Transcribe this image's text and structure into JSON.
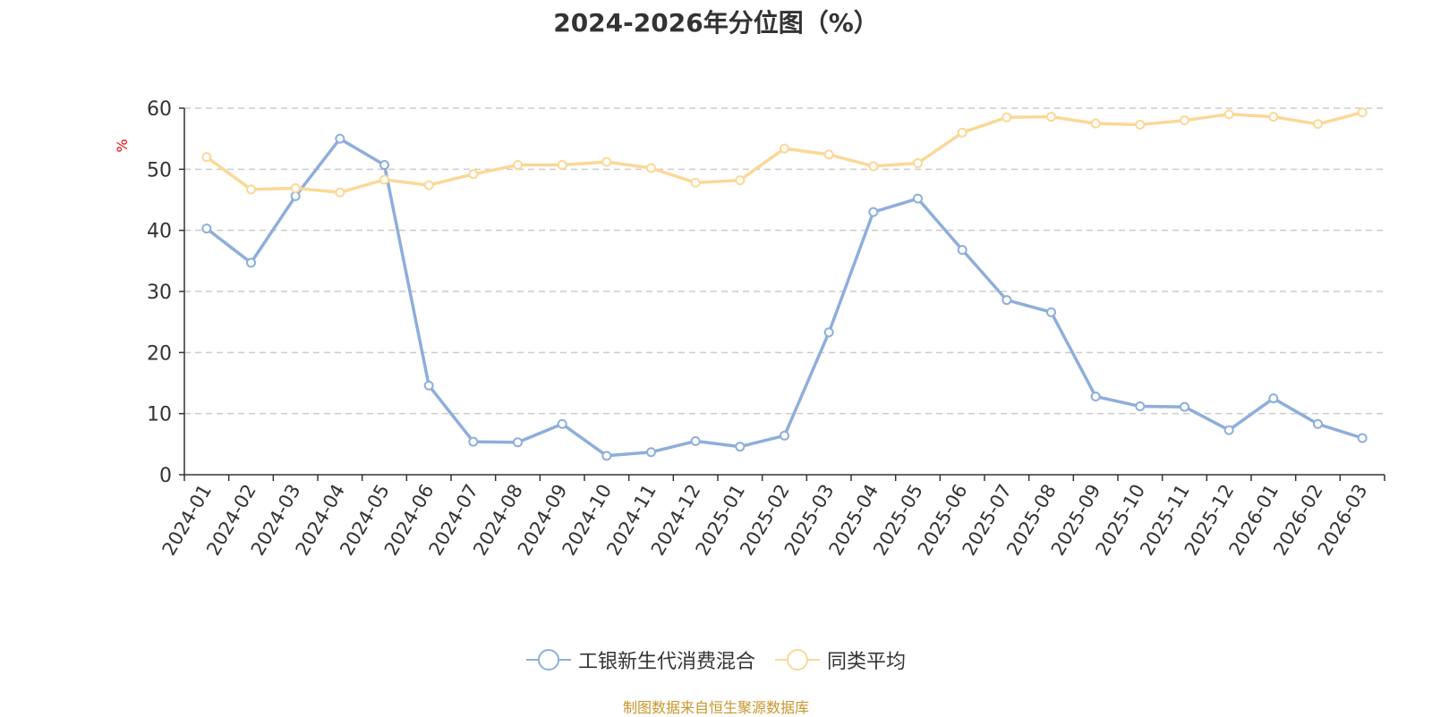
{
  "chart_data": {
    "type": "line",
    "title": "2024-2026年分位图（%）",
    "ylabel": "%",
    "xlabel": "",
    "ylim": [
      0,
      60
    ],
    "yticks": [
      0,
      10,
      20,
      30,
      40,
      50,
      60
    ],
    "grid": true,
    "legend_position": "bottom",
    "categories": [
      "2024-01",
      "2024-02",
      "2024-03",
      "2024-04",
      "2024-05",
      "2024-06",
      "2024-07",
      "2024-08",
      "2024-09",
      "2024-10",
      "2024-11",
      "2024-12",
      "2025-01",
      "2025-02",
      "2025-03",
      "2025-04",
      "2025-05",
      "2025-06",
      "2025-07",
      "2025-08",
      "2025-09",
      "2025-10",
      "2025-11",
      "2025-12",
      "2026-01",
      "2026-02",
      "2026-03"
    ],
    "series": [
      {
        "name": "工银新生代消费混合",
        "color": "#8eaedb",
        "values": [
          40.3,
          34.7,
          45.6,
          55.0,
          50.7,
          14.6,
          5.4,
          5.3,
          8.3,
          3.1,
          3.7,
          5.5,
          4.6,
          6.4,
          23.3,
          43.0,
          45.2,
          36.8,
          28.6,
          26.6,
          12.8,
          11.2,
          11.1,
          7.3,
          12.5,
          8.3,
          6.0
        ]
      },
      {
        "name": "同类平均",
        "color": "#fbd897",
        "values": [
          52.0,
          46.7,
          46.9,
          46.2,
          48.3,
          47.4,
          49.2,
          50.7,
          50.7,
          51.2,
          50.2,
          47.8,
          48.2,
          53.4,
          52.4,
          50.5,
          51.0,
          56.0,
          58.5,
          58.6,
          57.5,
          57.3,
          58.0,
          59.0,
          58.6,
          57.4,
          59.3
        ]
      }
    ]
  },
  "footer": {
    "source": "制图数据来自恒生聚源数据库"
  }
}
